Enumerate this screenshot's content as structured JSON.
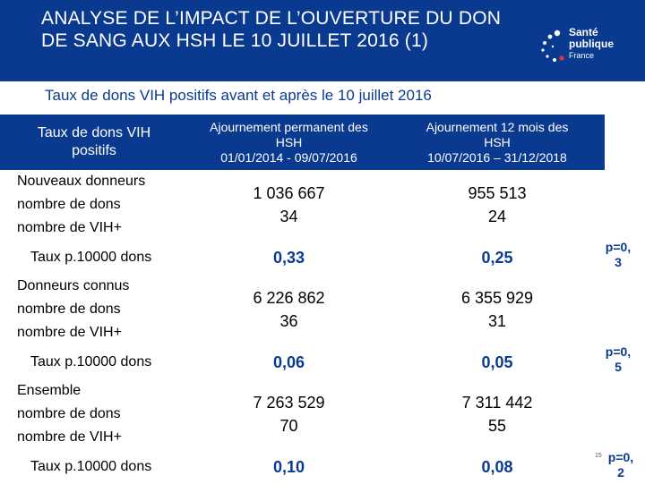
{
  "header": {
    "title": "ANALYSE DE L’IMPACT DE L’OUVERTURE DU DON DE SANG AUX HSH LE 10 JUILLET 2016 (1)",
    "logo_line1": "Santé",
    "logo_line2": "publique",
    "logo_line3": "France"
  },
  "subtitle": "Taux de dons VIH positifs avant et après le 10 juillet 2016",
  "table": {
    "col0": "Taux de dons VIH positifs",
    "col1": {
      "line1": "Ajournement permanent des",
      "line2": "HSH",
      "line3": "01/01/2014 - 09/07/2016"
    },
    "col2": {
      "line1": "Ajournement 12 mois des",
      "line2": "HSH",
      "line3": "10/07/2016 – 31/12/2018"
    },
    "groups": [
      {
        "name": "Nouveaux donneurs",
        "dons_label": "nombre de dons",
        "vih_label": "nombre de VIH+",
        "before_dons": "1 036 667",
        "before_vih": "34",
        "after_dons": "955 513",
        "after_vih": "24",
        "rate_label": "Taux p.10000 dons",
        "rate_before": "0,33",
        "rate_after": "0,25",
        "p_line1": "p=0,",
        "p_line2": "3"
      },
      {
        "name": "Donneurs connus",
        "dons_label": "nombre de dons",
        "vih_label": "nombre de VIH+",
        "before_dons": "6 226 862",
        "before_vih": "36",
        "after_dons": "6 355 929",
        "after_vih": "31",
        "rate_label": "Taux p.10000 dons",
        "rate_before": "0,06",
        "rate_after": "0,05",
        "p_line1": "p=0,",
        "p_line2": "5"
      },
      {
        "name": "Ensemble",
        "dons_label": "nombre de dons",
        "vih_label": "nombre de VIH+",
        "before_dons": "7 263 529",
        "before_vih": "70",
        "after_dons": "7 311 442",
        "after_vih": "55",
        "rate_label": "Taux p.10000 dons",
        "rate_before": "0,10",
        "rate_after": "0,08",
        "p_line1": "p=0,",
        "p_line2": "2"
      }
    ]
  },
  "page_number": "15",
  "colors": {
    "brand_blue": "#0a3a8f"
  }
}
